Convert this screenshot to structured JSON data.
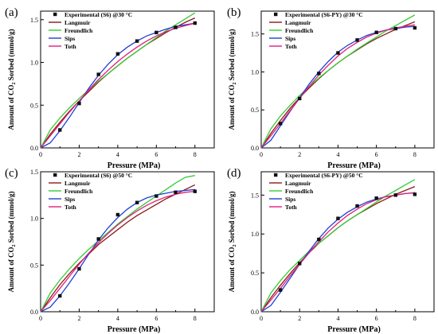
{
  "figure": {
    "x_label": "Pressure (MPa)",
    "y_label_parts": [
      "Amount of CO",
      "2",
      " Sorbed (mmol/g)"
    ],
    "model_colors": {
      "Langmuir": "#8b1a1a",
      "Freundlich": "#33cc33",
      "Sips": "#1f3fd6",
      "Toth": "#e0207a"
    },
    "marker_color": "#111111"
  },
  "chart_data": [
    {
      "panel": "(a)",
      "type": "scatter",
      "legend": [
        "Experimental (S6) @30 °C",
        "Langmuir",
        "Freundlich",
        "Sips",
        "Toth"
      ],
      "xlabel": "Pressure (MPa)",
      "ylabel": "Amount of CO2 Sorbed (mmol/g)",
      "xlim": [
        0,
        9
      ],
      "ylim": [
        0,
        1.6
      ],
      "xticks": [
        0,
        2,
        4,
        6,
        8
      ],
      "yticks": [
        0.0,
        0.5,
        1.0,
        1.5
      ],
      "experimental": {
        "x": [
          1,
          2,
          3,
          4,
          5,
          6,
          7,
          8
        ],
        "y": [
          0.21,
          0.52,
          0.86,
          1.1,
          1.25,
          1.35,
          1.41,
          1.46
        ]
      },
      "series": [
        {
          "name": "Langmuir",
          "x": [
            0,
            0.5,
            1,
            1.5,
            2,
            2.5,
            3,
            3.5,
            4,
            4.5,
            5,
            5.5,
            6,
            6.5,
            7,
            7.5,
            8
          ],
          "y": [
            0,
            0.16,
            0.3,
            0.43,
            0.55,
            0.66,
            0.77,
            0.87,
            0.96,
            1.05,
            1.13,
            1.21,
            1.28,
            1.35,
            1.41,
            1.47,
            1.52
          ]
        },
        {
          "name": "Freundlich",
          "x": [
            0,
            0.5,
            1,
            1.5,
            2,
            2.5,
            3,
            3.5,
            4,
            4.5,
            5,
            5.5,
            6,
            6.5,
            7,
            7.5,
            8
          ],
          "y": [
            0,
            0.21,
            0.35,
            0.47,
            0.58,
            0.68,
            0.78,
            0.87,
            0.96,
            1.05,
            1.13,
            1.21,
            1.29,
            1.37,
            1.44,
            1.51,
            1.58
          ]
        },
        {
          "name": "Sips",
          "x": [
            0,
            0.5,
            1,
            1.5,
            2,
            2.5,
            3,
            3.5,
            4,
            4.5,
            5,
            5.5,
            6,
            6.5,
            7,
            7.5,
            8
          ],
          "y": [
            0,
            0.06,
            0.2,
            0.36,
            0.53,
            0.7,
            0.85,
            0.98,
            1.09,
            1.18,
            1.25,
            1.31,
            1.35,
            1.39,
            1.42,
            1.44,
            1.46
          ]
        },
        {
          "name": "Toth",
          "x": [
            0,
            0.5,
            1,
            1.5,
            2,
            2.5,
            3,
            3.5,
            4,
            4.5,
            5,
            5.5,
            6,
            6.5,
            7,
            7.5,
            8
          ],
          "y": [
            0,
            0.14,
            0.28,
            0.42,
            0.55,
            0.68,
            0.8,
            0.91,
            1.01,
            1.1,
            1.18,
            1.25,
            1.31,
            1.36,
            1.4,
            1.43,
            1.46
          ]
        }
      ]
    },
    {
      "panel": "(b)",
      "type": "scatter",
      "legend": [
        "Experimental (S6-PY) @30 °C",
        "Langmuir",
        "Freundlich",
        "Sips",
        "Toth"
      ],
      "xlabel": "Pressure (MPa)",
      "ylabel": "Amount of CO2 Sorbed (mmol/g)",
      "xlim": [
        0,
        9
      ],
      "ylim": [
        0,
        1.8
      ],
      "xticks": [
        0,
        2,
        4,
        6,
        8
      ],
      "yticks": [
        0.0,
        0.5,
        1.0,
        1.5
      ],
      "experimental": {
        "x": [
          1,
          2,
          3,
          4,
          5,
          6,
          7,
          8
        ],
        "y": [
          0.32,
          0.65,
          0.98,
          1.25,
          1.42,
          1.52,
          1.57,
          1.58
        ]
      },
      "series": [
        {
          "name": "Langmuir",
          "x": [
            0,
            0.5,
            1,
            1.5,
            2,
            2.5,
            3,
            3.5,
            4,
            4.5,
            5,
            5.5,
            6,
            6.5,
            7,
            7.5,
            8
          ],
          "y": [
            0,
            0.19,
            0.36,
            0.52,
            0.66,
            0.79,
            0.91,
            1.02,
            1.12,
            1.21,
            1.29,
            1.37,
            1.44,
            1.5,
            1.56,
            1.61,
            1.66
          ]
        },
        {
          "name": "Freundlich",
          "x": [
            0,
            0.5,
            1,
            1.5,
            2,
            2.5,
            3,
            3.5,
            4,
            4.5,
            5,
            5.5,
            6,
            6.5,
            7,
            7.5,
            8
          ],
          "y": [
            0,
            0.25,
            0.42,
            0.56,
            0.69,
            0.81,
            0.92,
            1.02,
            1.12,
            1.21,
            1.3,
            1.38,
            1.46,
            1.54,
            1.61,
            1.68,
            1.75
          ]
        },
        {
          "name": "Sips",
          "x": [
            0,
            0.5,
            1,
            1.5,
            2,
            2.5,
            3,
            3.5,
            4,
            4.5,
            5,
            5.5,
            6,
            6.5,
            7,
            7.5,
            8
          ],
          "y": [
            0,
            0.1,
            0.29,
            0.48,
            0.66,
            0.84,
            1.0,
            1.14,
            1.26,
            1.35,
            1.42,
            1.48,
            1.52,
            1.55,
            1.57,
            1.59,
            1.6
          ]
        },
        {
          "name": "Toth",
          "x": [
            0,
            0.5,
            1,
            1.5,
            2,
            2.5,
            3,
            3.5,
            4,
            4.5,
            5,
            5.5,
            6,
            6.5,
            7,
            7.5,
            8
          ],
          "y": [
            0,
            0.16,
            0.32,
            0.49,
            0.65,
            0.81,
            0.96,
            1.09,
            1.21,
            1.31,
            1.39,
            1.46,
            1.51,
            1.55,
            1.58,
            1.6,
            1.62
          ]
        }
      ]
    },
    {
      "panel": "(c)",
      "type": "scatter",
      "legend": [
        "Experimental (S6) @50 °C",
        "Langmuir",
        "Freundlich",
        "Sips",
        "Toth"
      ],
      "xlabel": "Pressure (MPa)",
      "ylabel": "Amount of CO2 Sorbed (mmol/g)",
      "xlim": [
        0,
        9
      ],
      "ylim": [
        0,
        1.5
      ],
      "xticks": [
        0,
        2,
        4,
        6,
        8
      ],
      "yticks": [
        0.0,
        0.5,
        1.0,
        1.5
      ],
      "experimental": {
        "x": [
          1,
          2,
          3,
          4,
          5,
          6,
          7,
          8
        ],
        "y": [
          0.17,
          0.46,
          0.78,
          1.04,
          1.17,
          1.24,
          1.28,
          1.29
        ]
      },
      "series": [
        {
          "name": "Langmuir",
          "x": [
            0,
            0.5,
            1,
            1.5,
            2,
            2.5,
            3,
            3.5,
            4,
            4.5,
            5,
            5.5,
            6,
            6.5,
            7,
            7.5,
            8
          ],
          "y": [
            0,
            0.15,
            0.29,
            0.41,
            0.52,
            0.62,
            0.72,
            0.8,
            0.88,
            0.96,
            1.03,
            1.09,
            1.15,
            1.21,
            1.26,
            1.31,
            1.36
          ]
        },
        {
          "name": "Freundlich",
          "x": [
            0,
            0.5,
            1,
            1.5,
            2,
            2.5,
            3,
            3.5,
            4,
            4.5,
            5,
            5.5,
            6,
            6.5,
            7,
            7.5,
            8
          ],
          "y": [
            0,
            0.2,
            0.34,
            0.46,
            0.57,
            0.67,
            0.76,
            0.85,
            0.94,
            1.02,
            1.1,
            1.17,
            1.24,
            1.31,
            1.38,
            1.44,
            1.46
          ]
        },
        {
          "name": "Sips",
          "x": [
            0,
            0.5,
            1,
            1.5,
            2,
            2.5,
            3,
            3.5,
            4,
            4.5,
            5,
            5.5,
            6,
            6.5,
            7,
            7.5,
            8
          ],
          "y": [
            0,
            0.05,
            0.17,
            0.31,
            0.46,
            0.62,
            0.77,
            0.9,
            1.01,
            1.1,
            1.17,
            1.22,
            1.25,
            1.27,
            1.29,
            1.3,
            1.31
          ]
        },
        {
          "name": "Toth",
          "x": [
            0,
            0.5,
            1,
            1.5,
            2,
            2.5,
            3,
            3.5,
            4,
            4.5,
            5,
            5.5,
            6,
            6.5,
            7,
            7.5,
            8
          ],
          "y": [
            0,
            0.12,
            0.25,
            0.38,
            0.51,
            0.63,
            0.74,
            0.84,
            0.93,
            1.01,
            1.08,
            1.14,
            1.19,
            1.23,
            1.26,
            1.28,
            1.29
          ]
        }
      ]
    },
    {
      "panel": "(d)",
      "type": "scatter",
      "legend": [
        "Experimental (S6-PY) @50 °C",
        "Langmuir",
        "Freundlich",
        "Sips",
        "Toth"
      ],
      "xlabel": "Pressure (MPa)",
      "ylabel": "Amount of CO2 Sorbed (mmol/g)",
      "xlim": [
        0,
        9
      ],
      "ylim": [
        0,
        1.8
      ],
      "xticks": [
        0,
        2,
        4,
        6,
        8
      ],
      "yticks": [
        0.0,
        0.5,
        1.0,
        1.5
      ],
      "experimental": {
        "x": [
          1,
          2,
          3,
          4,
          5,
          6,
          7,
          8
        ],
        "y": [
          0.28,
          0.62,
          0.93,
          1.2,
          1.36,
          1.46,
          1.5,
          1.51
        ]
      },
      "series": [
        {
          "name": "Langmuir",
          "x": [
            0,
            0.5,
            1,
            1.5,
            2,
            2.5,
            3,
            3.5,
            4,
            4.5,
            5,
            5.5,
            6,
            6.5,
            7,
            7.5,
            8
          ],
          "y": [
            0,
            0.18,
            0.34,
            0.49,
            0.63,
            0.76,
            0.88,
            0.98,
            1.08,
            1.17,
            1.25,
            1.32,
            1.39,
            1.45,
            1.51,
            1.56,
            1.61
          ]
        },
        {
          "name": "Freundlich",
          "x": [
            0,
            0.5,
            1,
            1.5,
            2,
            2.5,
            3,
            3.5,
            4,
            4.5,
            5,
            5.5,
            6,
            6.5,
            7,
            7.5,
            8
          ],
          "y": [
            0,
            0.24,
            0.4,
            0.54,
            0.66,
            0.78,
            0.88,
            0.98,
            1.08,
            1.17,
            1.25,
            1.33,
            1.41,
            1.49,
            1.56,
            1.63,
            1.7
          ]
        },
        {
          "name": "Sips",
          "x": [
            0,
            0.5,
            1,
            1.5,
            2,
            2.5,
            3,
            3.5,
            4,
            4.5,
            5,
            5.5,
            6,
            6.5,
            7,
            7.5,
            8
          ],
          "y": [
            0,
            0.08,
            0.25,
            0.43,
            0.61,
            0.78,
            0.94,
            1.08,
            1.19,
            1.28,
            1.35,
            1.41,
            1.45,
            1.48,
            1.5,
            1.52,
            1.53
          ]
        },
        {
          "name": "Toth",
          "x": [
            0,
            0.5,
            1,
            1.5,
            2,
            2.5,
            3,
            3.5,
            4,
            4.5,
            5,
            5.5,
            6,
            6.5,
            7,
            7.5,
            8
          ],
          "y": [
            0,
            0.15,
            0.3,
            0.46,
            0.61,
            0.76,
            0.9,
            1.03,
            1.14,
            1.24,
            1.32,
            1.39,
            1.44,
            1.48,
            1.5,
            1.52,
            1.53
          ]
        }
      ]
    }
  ]
}
